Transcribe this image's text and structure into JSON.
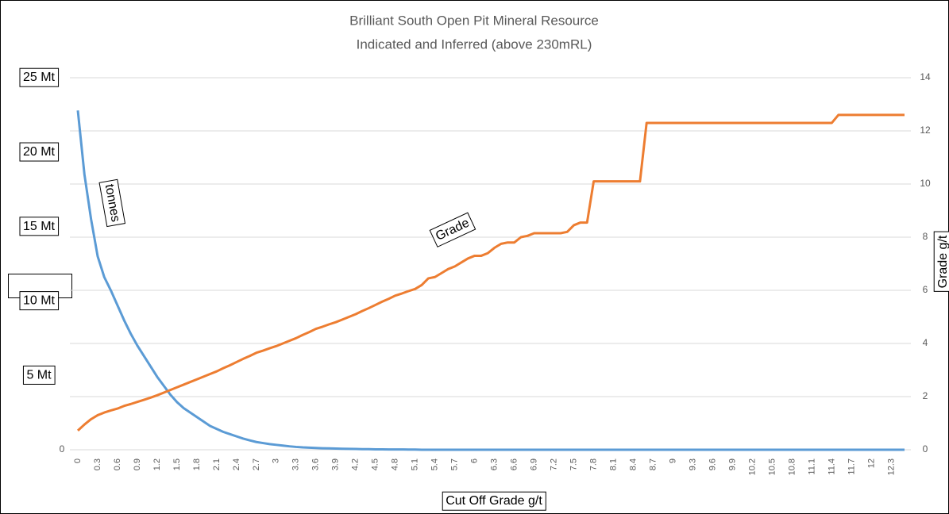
{
  "chart_data": {
    "type": "line",
    "title": "Brilliant South Open Pit Mineral Resource",
    "subtitle": "Indicated and Inferred (above 230mRL)",
    "x_label": "Cut Off Grade g/t",
    "y2_label": "Grade g/t",
    "x": [
      0,
      0.1,
      0.2,
      0.3,
      0.4,
      0.5,
      0.6,
      0.7,
      0.8,
      0.9,
      1,
      1.1,
      1.2,
      1.3,
      1.4,
      1.5,
      1.6,
      1.7,
      1.8,
      1.9,
      2,
      2.1,
      2.2,
      2.3,
      2.4,
      2.5,
      2.6,
      2.7,
      2.8,
      2.9,
      3,
      3.1,
      3.2,
      3.3,
      3.4,
      3.5,
      3.6,
      3.7,
      3.8,
      3.9,
      4,
      4.1,
      4.2,
      4.3,
      4.4,
      4.5,
      4.6,
      4.7,
      4.8,
      4.9,
      5,
      5.1,
      5.2,
      5.3,
      5.4,
      5.5,
      5.6,
      5.7,
      5.8,
      5.9,
      6,
      6.1,
      6.2,
      6.3,
      6.4,
      6.5,
      6.6,
      6.7,
      6.8,
      6.9,
      7,
      7.1,
      7.2,
      7.3,
      7.4,
      7.5,
      7.6,
      7.7,
      7.8,
      7.9,
      8,
      8.1,
      8.2,
      8.3,
      8.4,
      8.5,
      8.6,
      8.7,
      8.8,
      8.9,
      9,
      9.1,
      9.2,
      9.3,
      9.4,
      9.5,
      9.6,
      9.7,
      9.8,
      9.9,
      10,
      10.1,
      10.2,
      10.3,
      10.4,
      10.5,
      10.6,
      10.7,
      10.8,
      10.9,
      11,
      11.1,
      11.2,
      11.3,
      11.4,
      11.5,
      11.6,
      11.7,
      11.8,
      11.9,
      12,
      12.1,
      12.2,
      12.3,
      12.4,
      12.5
    ],
    "xlim": [
      0,
      12.5
    ],
    "xticks": [
      0,
      0.3,
      0.6,
      0.9,
      1.2,
      1.5,
      1.8,
      2.1,
      2.4,
      2.7,
      3,
      3.3,
      3.6,
      3.9,
      4.2,
      4.5,
      4.8,
      5.1,
      5.4,
      5.7,
      6,
      6.3,
      6.6,
      6.9,
      7.2,
      7.5,
      7.8,
      8.1,
      8.4,
      8.7,
      9,
      9.3,
      9.6,
      9.9,
      10.2,
      10.5,
      10.8,
      11.1,
      11.4,
      11.7,
      12,
      12.3
    ],
    "ylim": [
      0,
      25
    ],
    "yticks": [
      0,
      {
        "value": 5,
        "label": "5 Mt"
      },
      {
        "value": 10,
        "label": "10 Mt"
      },
      {
        "value": 15,
        "label": "15 Mt"
      },
      {
        "value": 20,
        "label": "20 Mt"
      },
      {
        "value": 25,
        "label": "25 Mt"
      }
    ],
    "y2lim": [
      0,
      14
    ],
    "y2ticks": [
      0,
      2,
      4,
      6,
      8,
      10,
      12,
      14
    ],
    "grid": true,
    "series": [
      {
        "name": "tonnes",
        "color": "#5b9bd5",
        "values": [
          22.8,
          18.5,
          15.5,
          13,
          11.6,
          10.7,
          9.7,
          8.7,
          7.8,
          7.0,
          6.3,
          5.6,
          4.9,
          4.3,
          3.7,
          3.2,
          2.8,
          2.5,
          2.2,
          1.9,
          1.6,
          1.4,
          1.2,
          1.05,
          0.9,
          0.75,
          0.63,
          0.52,
          0.45,
          0.38,
          0.33,
          0.28,
          0.23,
          0.19,
          0.16,
          0.14,
          0.12,
          0.1,
          0.09,
          0.08,
          0.07,
          0.06,
          0.05,
          0.04,
          0.04,
          0.03,
          0.03,
          0.02,
          0.02,
          0.02,
          0.01,
          0.01,
          0,
          0,
          0,
          0,
          0,
          0,
          0,
          0,
          0,
          0,
          0,
          0,
          0,
          0,
          0,
          0,
          0,
          0,
          0,
          0,
          0,
          0,
          0,
          0,
          0,
          0,
          0,
          0,
          0,
          0,
          0,
          0,
          0,
          0,
          0,
          0,
          0,
          0,
          0,
          0,
          0,
          0,
          0,
          0,
          0,
          0,
          0,
          0,
          0,
          0,
          0,
          0,
          0,
          0,
          0,
          0,
          0,
          0,
          0,
          0,
          0,
          0,
          0,
          0,
          0,
          0,
          0,
          0,
          0,
          0,
          0,
          0,
          0,
          0
        ]
      },
      {
        "name": "Grade",
        "color": "#ed7d31",
        "axis": "y2",
        "values": [
          0.72,
          0.95,
          1.15,
          1.3,
          1.4,
          1.48,
          1.55,
          1.65,
          1.72,
          1.8,
          1.88,
          1.96,
          2.05,
          2.15,
          2.25,
          2.35,
          2.45,
          2.55,
          2.65,
          2.75,
          2.85,
          2.95,
          3.07,
          3.18,
          3.3,
          3.42,
          3.53,
          3.65,
          3.73,
          3.82,
          3.9,
          4.0,
          4.1,
          4.2,
          4.32,
          4.43,
          4.55,
          4.63,
          4.72,
          4.8,
          4.9,
          5.0,
          5.1,
          5.22,
          5.33,
          5.45,
          5.57,
          5.68,
          5.8,
          5.88,
          5.97,
          6.05,
          6.2,
          6.45,
          6.5,
          6.65,
          6.8,
          6.9,
          7.05,
          7.2,
          7.3,
          7.3,
          7.4,
          7.6,
          7.75,
          7.8,
          7.8,
          8.0,
          8.05,
          8.15,
          8.15,
          8.15,
          8.15,
          8.15,
          8.2,
          8.45,
          8.55,
          8.55,
          10.1,
          10.1,
          10.1,
          10.1,
          10.1,
          10.1,
          10.1,
          10.1,
          12.3,
          12.3,
          12.3,
          12.3,
          12.3,
          12.3,
          12.3,
          12.3,
          12.3,
          12.3,
          12.3,
          12.3,
          12.3,
          12.3,
          12.3,
          12.3,
          12.3,
          12.3,
          12.3,
          12.3,
          12.3,
          12.3,
          12.3,
          12.3,
          12.3,
          12.3,
          12.3,
          12.3,
          12.3,
          12.6,
          12.6,
          12.6,
          12.6,
          12.6,
          12.6,
          12.6,
          12.6,
          12.6,
          12.6,
          12.6
        ]
      }
    ]
  }
}
